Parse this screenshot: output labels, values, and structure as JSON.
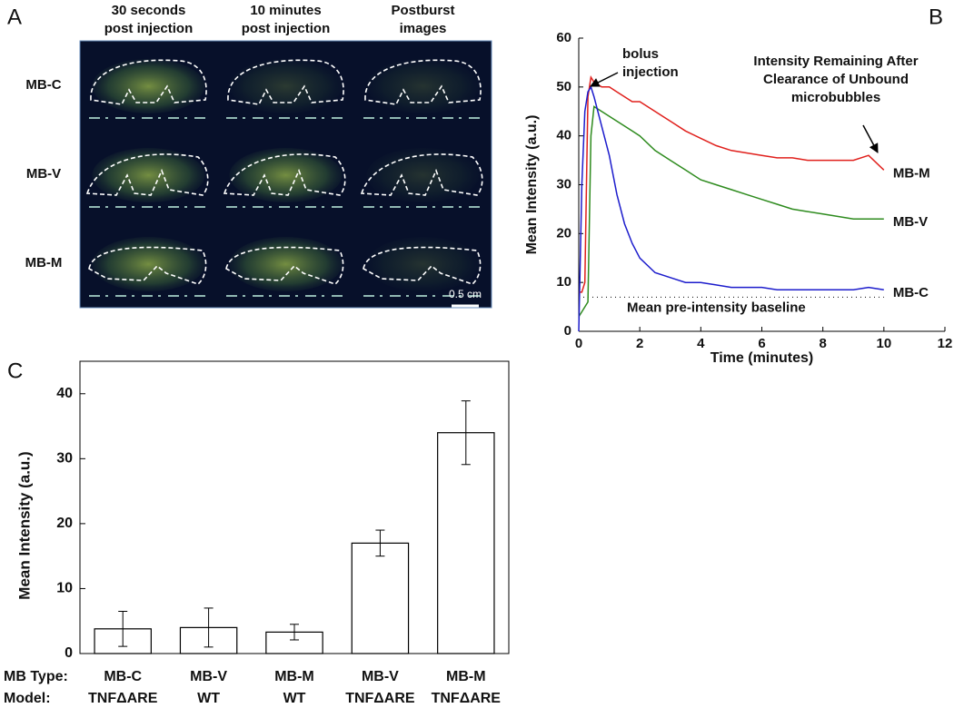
{
  "panel_a": {
    "label": "A",
    "columns": [
      [
        "30 seconds",
        "post injection"
      ],
      [
        "10 minutes",
        "post injection"
      ],
      [
        "Postburst",
        "images"
      ]
    ],
    "rows": [
      "MB-C",
      "MB-V",
      "MB-M"
    ],
    "scale_bar": "0.5 cm"
  },
  "chart_data": [
    {
      "type": "line",
      "label": "B",
      "x_label": "Time (minutes)",
      "y_label": "Mean Intensity (a.u.)",
      "xlim": [
        0,
        12
      ],
      "xticks": [
        0,
        2,
        4,
        6,
        8,
        10,
        12
      ],
      "ylim": [
        0,
        60
      ],
      "yticks": [
        0,
        10,
        20,
        30,
        40,
        50,
        60
      ],
      "x": [
        0,
        0.1,
        0.2,
        0.3,
        0.4,
        0.5,
        0.75,
        1,
        1.25,
        1.5,
        1.75,
        2,
        2.5,
        3,
        3.5,
        4,
        4.5,
        5,
        5.5,
        6,
        6.5,
        7,
        7.5,
        8,
        8.5,
        9,
        9.5,
        10
      ],
      "series": [
        {
          "name": "MB-M",
          "color": "#e0201c",
          "values": [
            8,
            8,
            10,
            48,
            52,
            51,
            50,
            50,
            49,
            48,
            47,
            47,
            45,
            43,
            41,
            39.5,
            38,
            37,
            36.5,
            36,
            35.5,
            35.5,
            35,
            35,
            35,
            35,
            36,
            33
          ]
        },
        {
          "name": "MB-V",
          "color": "#2e8b1e",
          "values": [
            3,
            4,
            5,
            6,
            40,
            46,
            45,
            44,
            43,
            42,
            41,
            40,
            37,
            35,
            33,
            31,
            30,
            29,
            28,
            27,
            26,
            25,
            24.5,
            24,
            23.5,
            23,
            23,
            23
          ]
        },
        {
          "name": "MB-C",
          "color": "#1c1ccc",
          "values": [
            0,
            30,
            45,
            49,
            50,
            48,
            42,
            36,
            28,
            22,
            18,
            15,
            12,
            11,
            10,
            10,
            9.5,
            9,
            9,
            9,
            8.5,
            8.5,
            8.5,
            8.5,
            8.5,
            8.5,
            9,
            8.5
          ]
        }
      ],
      "baseline": 7,
      "baseline_label": "Mean pre-intensity baseline",
      "annotations": [
        [
          "bolus",
          "injection"
        ],
        [
          "Intensity Remaining After",
          "Clearance of Unbound",
          "microbubbles"
        ]
      ]
    },
    {
      "type": "bar",
      "label": "C",
      "y_label": "Mean Intensity (a.u.)",
      "ylim": [
        0,
        45
      ],
      "yticks": [
        0,
        10,
        20,
        30,
        40
      ],
      "category_headers": [
        "MB Type:",
        "Model:"
      ],
      "categories": [
        "MB-C",
        "MB-V",
        "MB-M",
        "MB-V",
        "MB-M"
      ],
      "models": [
        "TNFΔARE",
        "WT",
        "WT",
        "TNFΔARE",
        "TNFΔARE"
      ],
      "values": [
        3.8,
        4,
        3.3,
        17,
        34
      ],
      "errors": [
        2.7,
        3,
        1.2,
        2,
        4.9
      ],
      "color": "#ffffff"
    }
  ]
}
